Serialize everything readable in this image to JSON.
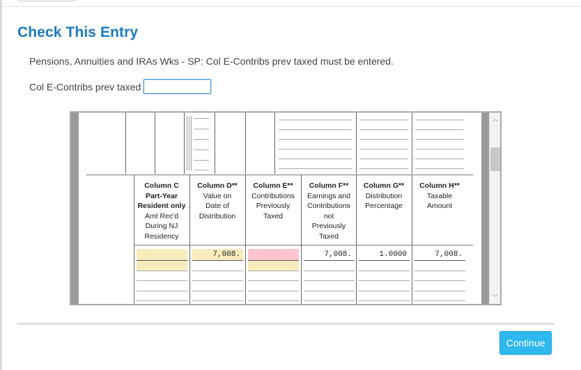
{
  "dialog": {
    "title": "Check This Entry",
    "message": "Pensions, Annuities and IRAs Wks - SP: Col E-Contribs prev taxed must be entered.",
    "field_label": "Col E-Contribs prev taxed",
    "field_value": ""
  },
  "worksheet": {
    "columns": [
      {
        "id": "C",
        "header": "Column C\nPart-Year\nResident only",
        "sub": "Amt Rec'd\nDuring NJ\nResidency",
        "value": ""
      },
      {
        "id": "D",
        "header": "Column D**",
        "sub": "Value on\nDate of\nDistribution",
        "value": "7,008."
      },
      {
        "id": "E",
        "header": "Column E**",
        "sub": "Contributions\nPreviously\nTaxed",
        "value": ""
      },
      {
        "id": "F",
        "header": "Column F**",
        "sub": "Earnings and\nContributions\nnot\nPreviously\nTaxed",
        "value": "7,008."
      },
      {
        "id": "G",
        "header": "Column G**",
        "sub": "Distribution\nPercentage",
        "value": "1.0000"
      },
      {
        "id": "H",
        "header": "Column H**",
        "sub": "Taxable\nAmount",
        "value": "7,008."
      }
    ]
  },
  "footer": {
    "continue_label": "Continue"
  },
  "colors": {
    "title": "#1a7ac3",
    "button": "#2eb8ed",
    "required_field": "#ffc4cf",
    "calculated_field": "#f6ecbc"
  }
}
